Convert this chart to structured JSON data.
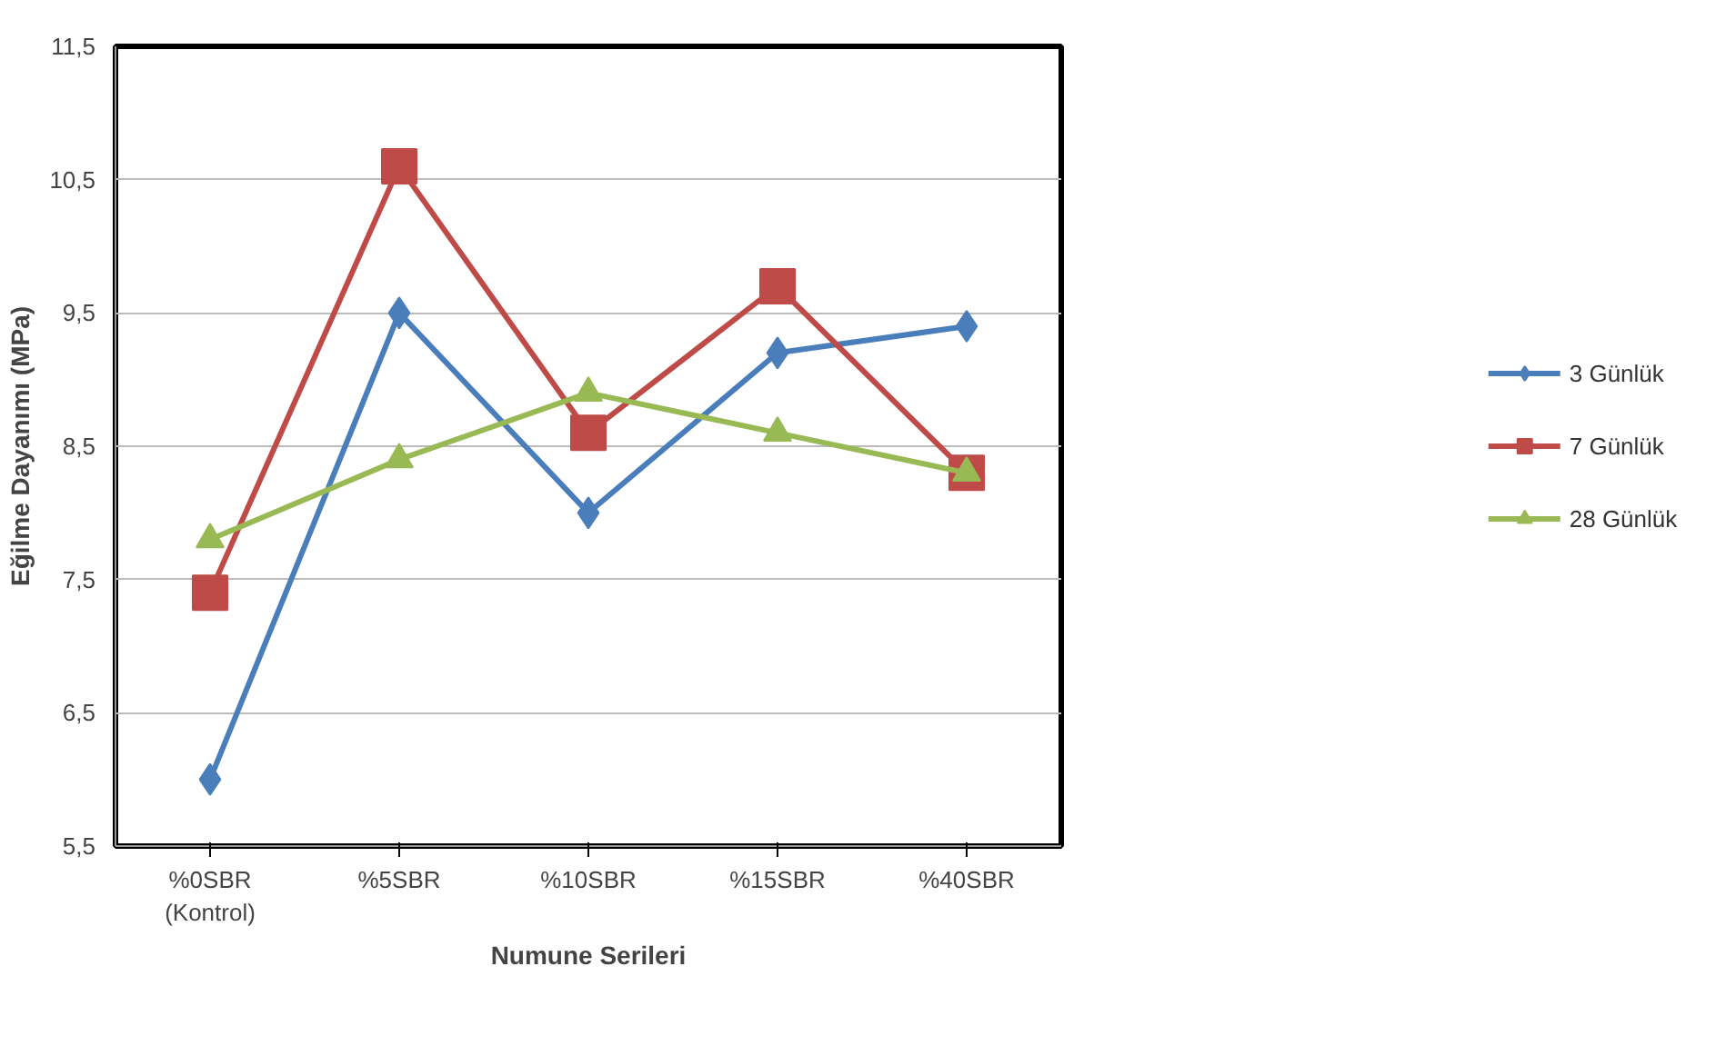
{
  "chart_data": {
    "type": "line",
    "xlabel": "Numune Serileri",
    "ylabel": "Eğilme Dayanımı (MPa)",
    "categories": [
      "%0SBR\n(Kontrol)",
      "%5SBR",
      "%10SBR",
      "%15SBR",
      "%40SBR"
    ],
    "series": [
      {
        "name": "3 Günlük",
        "color": "#4a7ebb",
        "marker": "diamond",
        "values": [
          6.0,
          9.5,
          8.0,
          9.2,
          9.4
        ]
      },
      {
        "name": "7 Günlük",
        "color": "#be4b48",
        "marker": "square",
        "values": [
          7.4,
          10.6,
          8.6,
          9.7,
          8.3
        ]
      },
      {
        "name": "28 Günlük",
        "color": "#98b954",
        "marker": "triangle",
        "values": [
          7.8,
          8.4,
          8.9,
          8.6,
          8.3
        ]
      }
    ],
    "ylim": [
      5.5,
      11.5
    ],
    "yticks": [
      {
        "value": 5.5,
        "label": "5,5"
      },
      {
        "value": 6.5,
        "label": "6,5"
      },
      {
        "value": 7.5,
        "label": "7,5"
      },
      {
        "value": 8.5,
        "label": "8,5"
      },
      {
        "value": 9.5,
        "label": "9,5"
      },
      {
        "value": 10.5,
        "label": "10,5"
      },
      {
        "value": 11.5,
        "label": "11,5"
      }
    ],
    "grid": "y",
    "legend": "right",
    "line_style": "solid"
  }
}
